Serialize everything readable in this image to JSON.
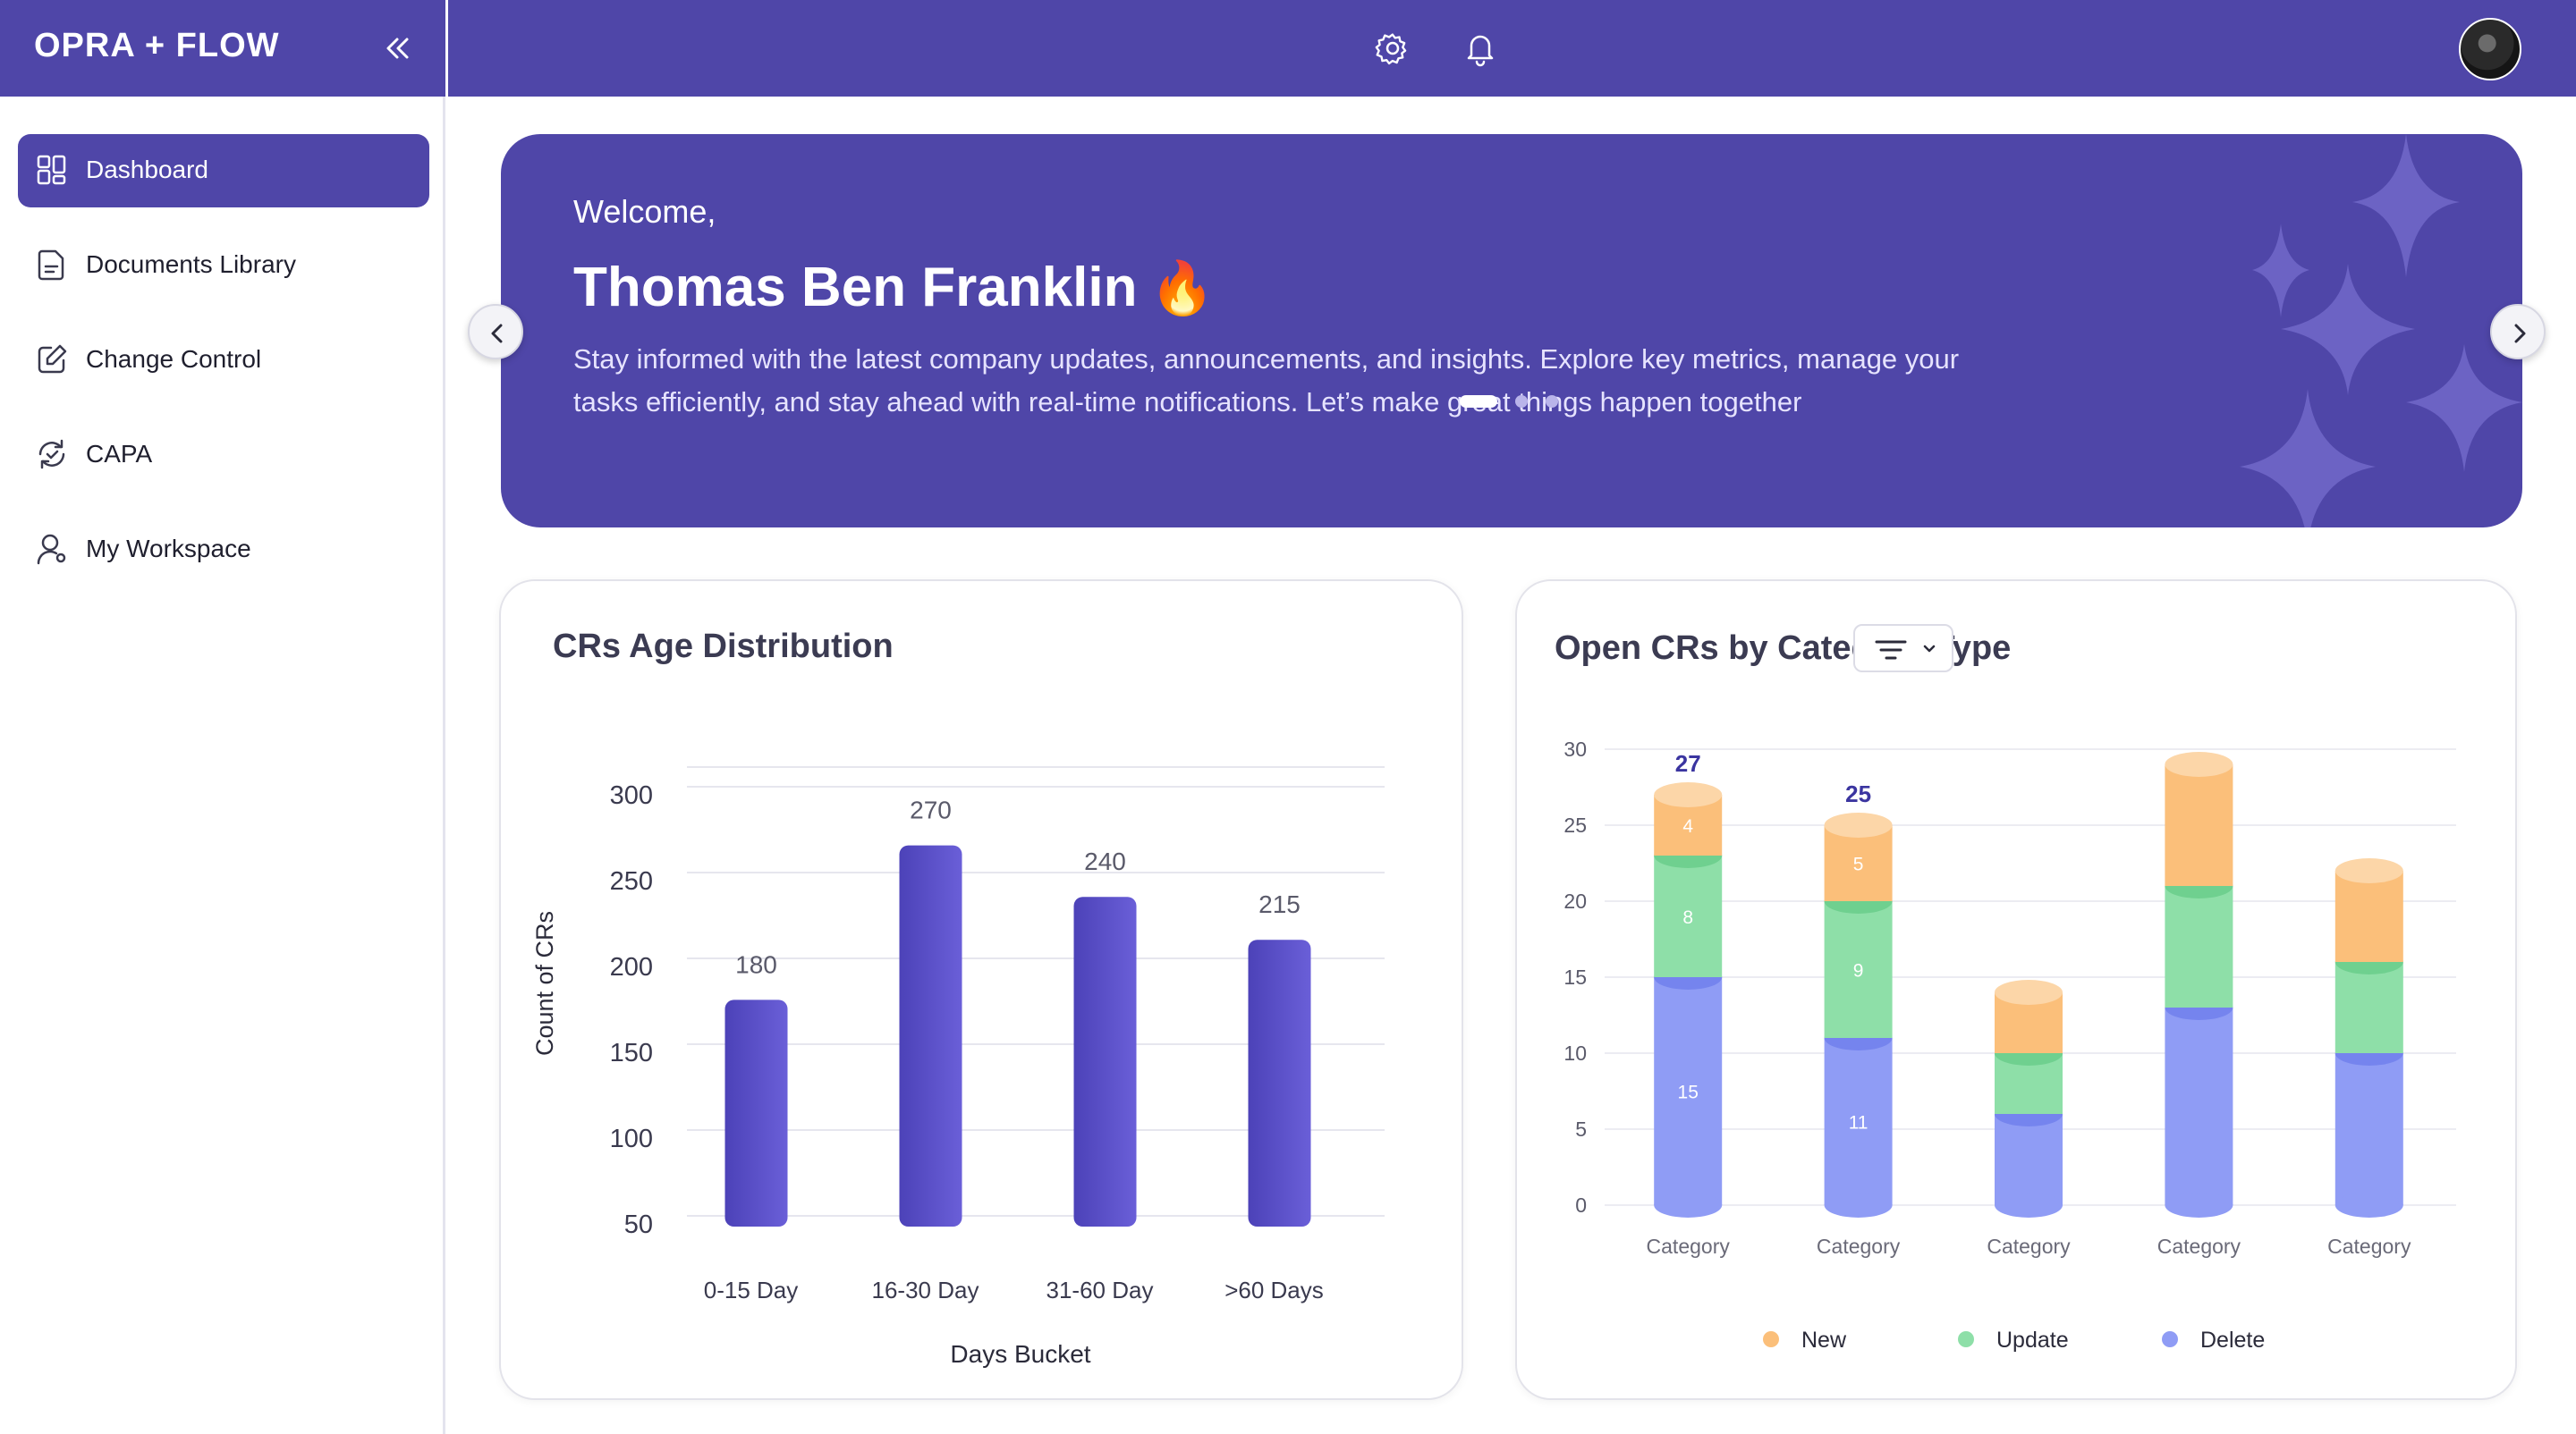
{
  "brand": {
    "title": "OPRA + FLOW"
  },
  "sidebar": {
    "items": [
      {
        "label": "Dashboard",
        "icon": "dashboard-icon",
        "active": true
      },
      {
        "label": "Documents Library",
        "icon": "document-icon",
        "active": false
      },
      {
        "label": "Change Control",
        "icon": "edit-icon",
        "active": false
      },
      {
        "label": "CAPA",
        "icon": "cycle-icon",
        "active": false
      },
      {
        "label": "My Workspace",
        "icon": "user-icon",
        "active": false
      }
    ]
  },
  "topbar": {
    "icons": [
      "gear-icon",
      "bell-icon",
      "avatar"
    ]
  },
  "banner": {
    "greeting": "Welcome,",
    "name": "Thomas Ben Franklin",
    "emoji": "🔥",
    "text": "Stay informed with the latest company updates, announcements, and insights. Explore key metrics, manage your tasks efficiently, and stay ahead with real-time notifications. Let’s make great things happen together",
    "slides": 3,
    "active_slide": 1
  },
  "colors": {
    "primary": "#4f46a8",
    "bar": "#5b50c8",
    "new": "#fbbf7a",
    "update": "#8edfa8",
    "delete": "#8f9cf5"
  },
  "chart_data": [
    {
      "type": "bar",
      "title": "CRs Age Distribution",
      "xlabel": "Days Bucket",
      "ylabel": "Count of CRs",
      "categories": [
        "0-15 Day",
        "16-30 Day",
        "31-60 Day",
        ">60 Days"
      ],
      "values": [
        180,
        270,
        240,
        215
      ],
      "yticks": [
        50,
        100,
        150,
        200,
        250,
        300
      ],
      "ylim": [
        50,
        300
      ],
      "grid": true
    },
    {
      "type": "bar",
      "stacked": true,
      "title": "Open CRs by Category/Type",
      "categories": [
        "Category",
        "Category",
        "Category",
        "Category",
        "Category"
      ],
      "yticks": [
        0,
        5,
        10,
        15,
        20,
        25,
        30
      ],
      "ylim": [
        0,
        30
      ],
      "grid": true,
      "legend_position": "bottom",
      "totals": [
        "27",
        "25",
        "",
        "",
        ""
      ],
      "series": [
        {
          "name": "Delete",
          "values": [
            15,
            11,
            6,
            13,
            10
          ],
          "labels": [
            "15",
            "11",
            "",
            "",
            ""
          ]
        },
        {
          "name": "Update",
          "values": [
            8,
            9,
            4,
            8,
            6
          ],
          "labels": [
            "8",
            "9",
            "",
            "",
            ""
          ]
        },
        {
          "name": "New",
          "values": [
            4,
            5,
            4,
            8,
            6
          ],
          "labels": [
            "4",
            "5",
            "",
            "",
            ""
          ]
        }
      ],
      "legend": [
        "New",
        "Update",
        "Delete"
      ]
    }
  ]
}
